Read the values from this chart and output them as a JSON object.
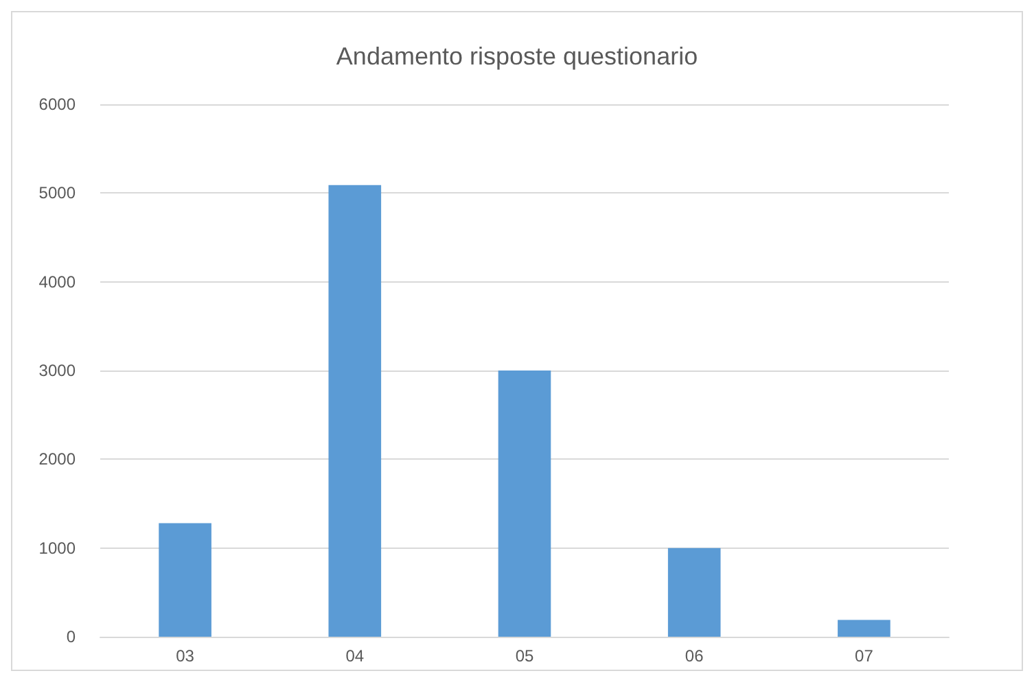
{
  "chart_data": {
    "type": "bar",
    "title": "Andamento risposte questionario",
    "categories": [
      "03",
      "04",
      "05",
      "06",
      "07"
    ],
    "values": [
      1280,
      5090,
      3000,
      1000,
      190
    ],
    "color": "#5b9bd5",
    "ylim": [
      0,
      6000
    ],
    "yticks": [
      0,
      1000,
      2000,
      3000,
      4000,
      5000,
      6000
    ],
    "grid": "y"
  }
}
